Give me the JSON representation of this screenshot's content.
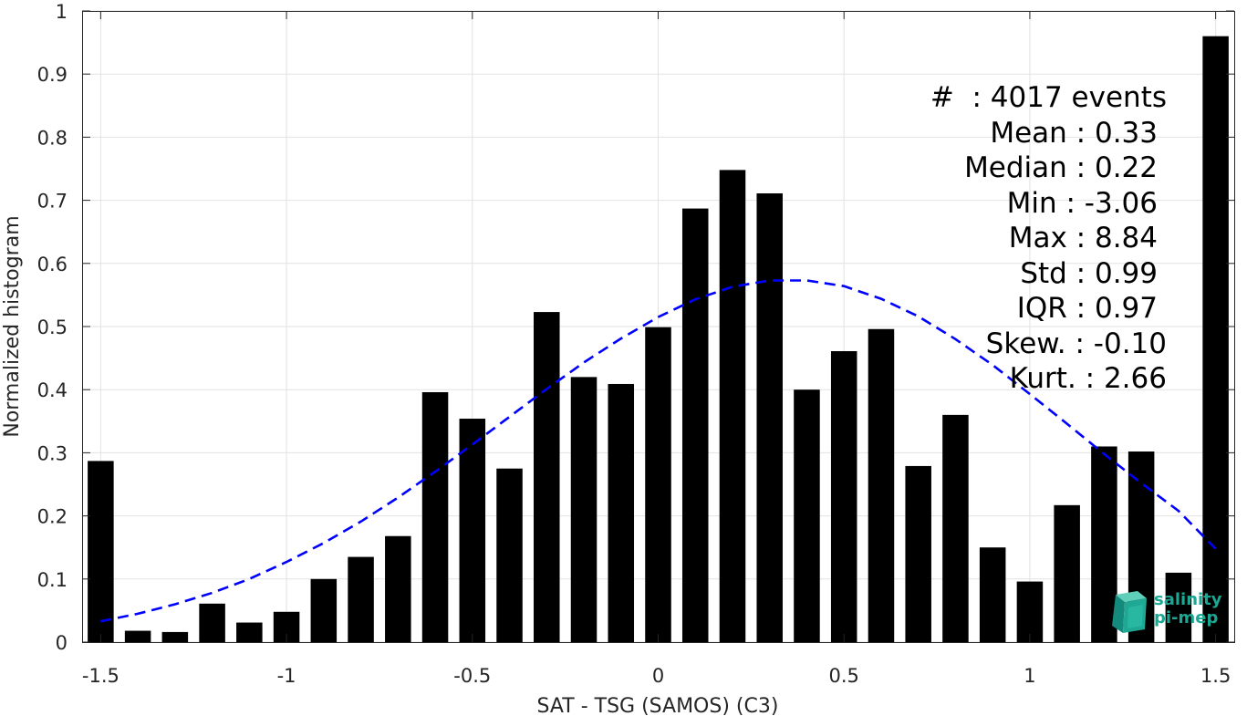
{
  "chart_data": {
    "type": "bar",
    "xlabel": "SAT - TSG (SAMOS) (C3)",
    "ylabel": "Normalized histogram",
    "xlim": [
      -1.55,
      1.55
    ],
    "ylim": [
      0,
      1
    ],
    "xticks": [
      -1.5,
      -1,
      -0.5,
      0,
      0.5,
      1,
      1.5
    ],
    "xtick_labels": [
      "-1.5",
      "-1",
      "-0.5",
      "0",
      "0.5",
      "1",
      "1.5"
    ],
    "yticks": [
      0,
      0.1,
      0.2,
      0.3,
      0.4,
      0.5,
      0.6,
      0.7,
      0.8,
      0.9,
      1
    ],
    "ytick_labels": [
      "0",
      "0.1",
      "0.2",
      "0.3",
      "0.4",
      "0.5",
      "0.6",
      "0.7",
      "0.8",
      "0.9",
      "1"
    ],
    "grid": true,
    "bar_color": "#000000",
    "x": [
      -1.5,
      -1.4,
      -1.3,
      -1.2,
      -1.1,
      -1.0,
      -0.9,
      -0.8,
      -0.7,
      -0.6,
      -0.5,
      -0.4,
      -0.3,
      -0.2,
      -0.1,
      0.0,
      0.1,
      0.2,
      0.3,
      0.4,
      0.5,
      0.6,
      0.7,
      0.8,
      0.9,
      1.0,
      1.1,
      1.2,
      1.3,
      1.4,
      1.5
    ],
    "values": [
      0.287,
      0.018,
      0.016,
      0.061,
      0.031,
      0.048,
      0.1,
      0.135,
      0.168,
      0.396,
      0.354,
      0.275,
      0.523,
      0.42,
      0.409,
      0.499,
      0.687,
      0.748,
      0.711,
      0.4,
      0.461,
      0.496,
      0.279,
      0.36,
      0.15,
      0.096,
      0.217,
      0.31,
      0.302,
      0.11,
      0.96
    ],
    "fit": {
      "style": "dashed",
      "color": "#0000ff",
      "x": [
        -1.5,
        -1.4,
        -1.3,
        -1.2,
        -1.1,
        -1.0,
        -0.9,
        -0.8,
        -0.7,
        -0.6,
        -0.5,
        -0.4,
        -0.3,
        -0.2,
        -0.1,
        0.0,
        0.1,
        0.2,
        0.3,
        0.4,
        0.5,
        0.6,
        0.7,
        0.8,
        0.9,
        1.0,
        1.1,
        1.2,
        1.3,
        1.4,
        1.5
      ],
      "values": [
        0.033,
        0.045,
        0.06,
        0.078,
        0.1,
        0.127,
        0.157,
        0.191,
        0.229,
        0.27,
        0.313,
        0.357,
        0.401,
        0.443,
        0.481,
        0.515,
        0.543,
        0.563,
        0.573,
        0.573,
        0.564,
        0.544,
        0.516,
        0.48,
        0.439,
        0.393,
        0.346,
        0.298,
        0.252,
        0.208,
        0.148
      ]
    }
  },
  "stats": [
    "#  : 4017 events",
    "Mean : 0.33",
    "Median : 0.22",
    "Min : -3.06",
    "Max : 8.84",
    "Std : 0.99",
    "IQR : 0.97",
    "Skew. : -0.10",
    "Kurt. : 2.66"
  ],
  "logo": {
    "line1": "salinity",
    "line2": "pi-mep"
  }
}
